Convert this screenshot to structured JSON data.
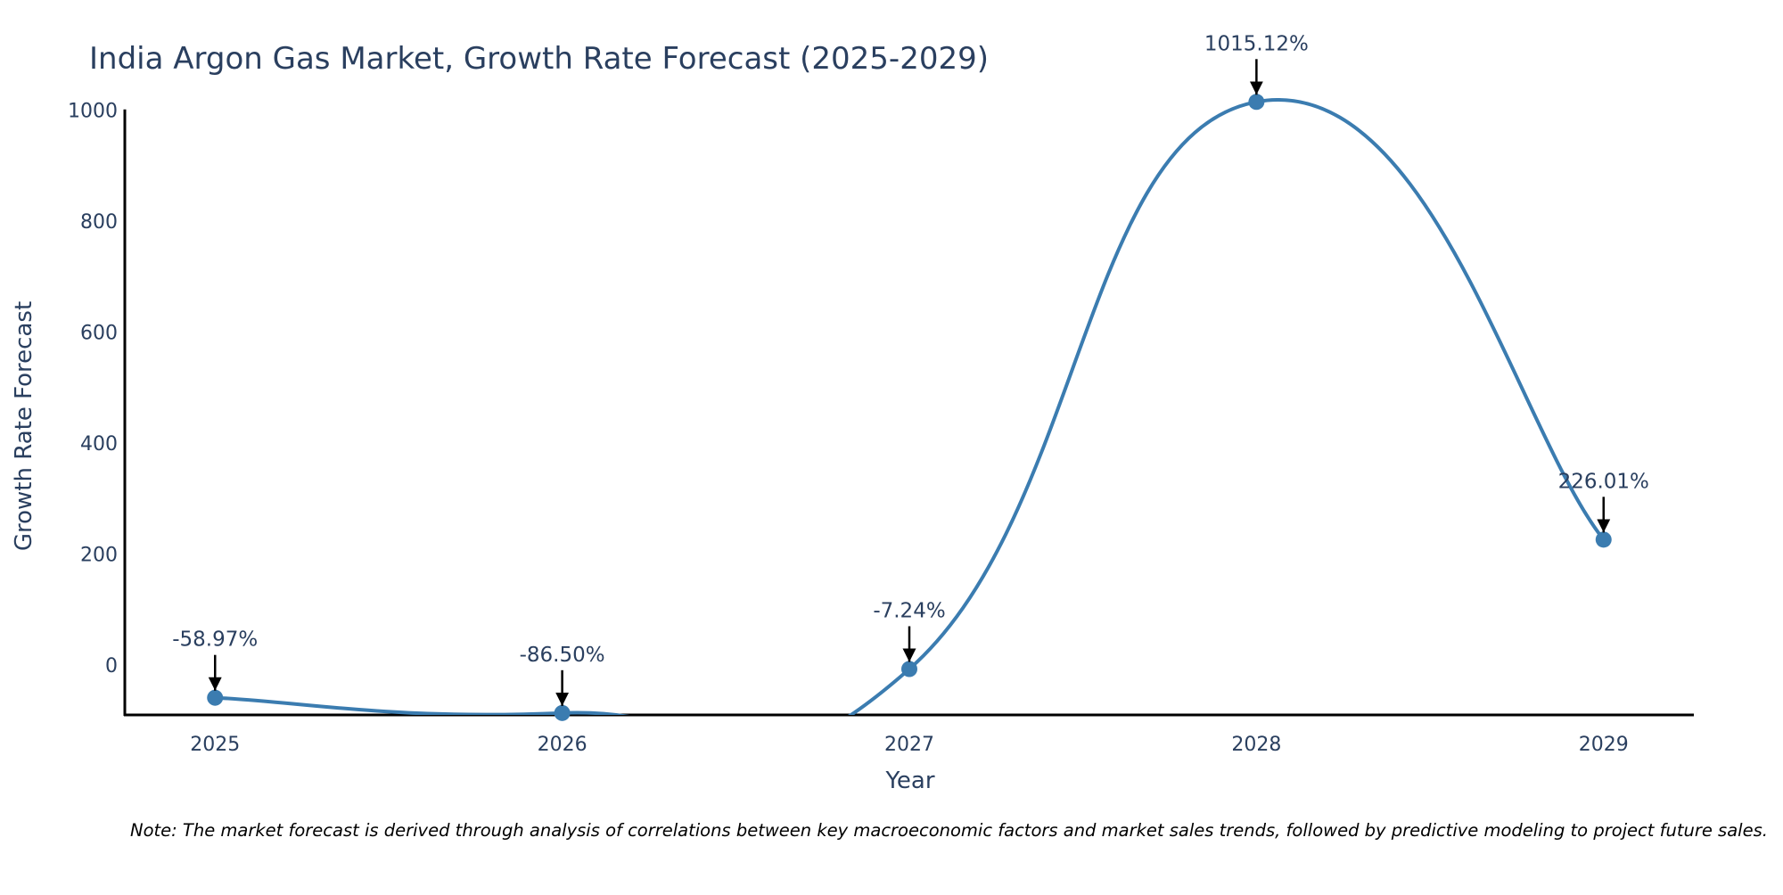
{
  "chart_data": {
    "type": "line",
    "title": "India Argon Gas Market, Growth Rate Forecast (2025-2029)",
    "xlabel": "Year",
    "ylabel": "Growth Rate Forecast",
    "categories": [
      "2025",
      "2026",
      "2027",
      "2028",
      "2029"
    ],
    "series": [
      {
        "name": "Growth Rate Forecast",
        "values": [
          -58.97,
          -86.5,
          -7.24,
          1015.12,
          226.01
        ],
        "color": "#3b7cb0"
      }
    ],
    "annotations": [
      "-58.97%",
      "-86.50%",
      "-7.24%",
      "1015.12%",
      "226.01%"
    ],
    "y_ticks": [
      "0",
      "200",
      "400",
      "600",
      "800",
      "1000"
    ],
    "y_tick_values": [
      0,
      200,
      400,
      600,
      800,
      1000
    ],
    "ylim": [
      -90,
      1022
    ],
    "xlim": [
      -0.26,
      4.26
    ],
    "line_shape": "spline",
    "grid": false,
    "note": "Note: The market forecast is derived through analysis of correlations between key macroeconomic factors and market sales trends, followed by predictive modeling to project future sales."
  },
  "colors": {
    "line": "#3b7cb0",
    "marker": "#3b7cb0",
    "axis": "#000000",
    "text": "#2a3f5f",
    "arrow": "#000000"
  }
}
